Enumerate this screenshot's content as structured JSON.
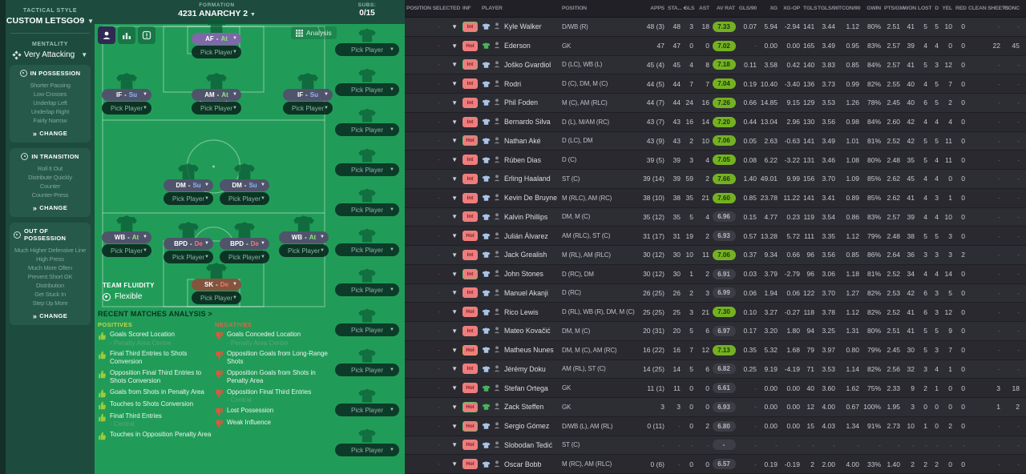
{
  "colors": {
    "pitch_green": "#219c58",
    "sidebar_green": "#1d4c3e",
    "card_green": "#27594b",
    "role_slate": "#50546b",
    "role_purple": "#7e68a8",
    "role_gk_brown": "#84543f",
    "duty_attack": "#8ce87f",
    "duty_support": "#8fb5f2",
    "duty_defend": "#f4766e",
    "rating_good": "#74b122",
    "badge_red": "#ee7d7d",
    "positive_icon": "#9ccc3d",
    "negative_icon": "#e2553d",
    "table_bg": "#27272d"
  },
  "sidebar": {
    "tactical_style_label": "TACTICAL STYLE",
    "tactical_style_value": "CUSTOM LETSGO9",
    "mentality_label": "MENTALITY",
    "mentality_value": "Very Attacking",
    "sections": [
      {
        "title": "IN POSSESSION",
        "items": [
          "Shorter Passing",
          "Low Crosses",
          "Underlap Left",
          "Underlap Right",
          "Fairly Narrow"
        ],
        "change_label": "CHANGE"
      },
      {
        "title": "IN TRANSITION",
        "items": [
          "Roll It Out",
          "Distribute Quickly",
          "Counter",
          "Counter-Press"
        ],
        "change_label": "CHANGE"
      },
      {
        "title": "OUT OF POSSESSION",
        "items": [
          "Much Higher Defensive Line",
          "High Press",
          "Much More Often",
          "Prevent Short GK Distribution",
          "Get Stuck In",
          "Step Up More"
        ],
        "change_label": "CHANGE"
      }
    ]
  },
  "formation": {
    "label": "FORMATION",
    "name": "4231 ANARCHY 2",
    "analysis_button": "Analysis",
    "pick_label": "Pick Player",
    "team_fluidity_label": "TEAM FLUIDITY",
    "team_fluidity_value": "Flexible",
    "positions": [
      {
        "role": "AF",
        "duty": "At"
      },
      {
        "role": "IF",
        "duty": "Su"
      },
      {
        "role": "AM",
        "duty": "At"
      },
      {
        "role": "IF",
        "duty": "Su"
      },
      {
        "role": "DM",
        "duty": "Su"
      },
      {
        "role": "DM",
        "duty": "Su"
      },
      {
        "role": "WB",
        "duty": "At"
      },
      {
        "role": "BPD",
        "duty": "De"
      },
      {
        "role": "BPD",
        "duty": "De"
      },
      {
        "role": "WB",
        "duty": "At"
      },
      {
        "role": "SK",
        "duty": "De"
      }
    ]
  },
  "subs": {
    "label": "SUBS:",
    "count": "0/15",
    "slots": 11
  },
  "analysis": {
    "title": "RECENT MATCHES ANALYSIS >",
    "positives_title": "POSITIVES",
    "negatives_title": "NEGATIVES",
    "positives": [
      {
        "text": "Goals Scored Location",
        "note": "- Penalty Area Centre"
      },
      {
        "text": "Final Third Entries to Shots Conversion"
      },
      {
        "text": "Opposition Final Third Entries to Shots Conversion"
      },
      {
        "text": "Goals from Shots in Penalty Area"
      },
      {
        "text": "Touches to Shots Conversion"
      },
      {
        "text": "Final Third Entries",
        "note": "- Central"
      },
      {
        "text": "Touches in Opposition Penalty Area"
      }
    ],
    "negatives": [
      {
        "text": "Goals Conceded Location",
        "note": "- Penalty Area Centre"
      },
      {
        "text": "Opposition Goals from Long-Range Shots"
      },
      {
        "text": "Opposition Goals from Shots in Penalty Area"
      },
      {
        "text": "Opposition Final Third Entries",
        "note": "- Central"
      },
      {
        "text": "Lost Possession"
      },
      {
        "text": "Weak Influence"
      }
    ]
  },
  "table": {
    "selected_placeholder": "-",
    "headers": {
      "possel": "POSITION SELECTED",
      "inf": "INF",
      "player": "PLAYER",
      "pos": "POSITION",
      "apps": "APPS",
      "sta": "STA...",
      "gls": "GLS",
      "ast": "AST",
      "rat": "AV RAT",
      "gls90": "GLS/90",
      "xg": "XG",
      "xgop": "XG-OP",
      "tgls": "TGLS",
      "tgls90": "TGLS/90",
      "tcon90": "TCON/90",
      "gwin": "GWIN",
      "ptsgm": "PTS/GM",
      "won": "WON",
      "lost": "LOST",
      "d": "D",
      "yel": "YEL",
      "red": "RED",
      "cs": "CLEAN SHEETS",
      "conc": "CONC"
    },
    "rows": [
      {
        "inf": "Int",
        "accent": "green",
        "gk": false,
        "name": "Kyle Walker",
        "pos": "D/WB (R)",
        "apps": "48 (3)",
        "sta": "48",
        "gls": "3",
        "ast": "18",
        "rat": "7.33",
        "rat_good": true,
        "gls90": "0.07",
        "xg": "5.94",
        "xgop": "-2.94",
        "tgls": "141",
        "tgls90": "3.44",
        "tcon90": "1.12",
        "gwin": "80%",
        "ptsgm": "2.51",
        "won": "41",
        "lost": "5",
        "d": "5",
        "yel": "10",
        "red": "0",
        "cs": "-",
        "conc": "-"
      },
      {
        "inf": "Hol",
        "accent": null,
        "gk": true,
        "name": "Ederson",
        "pos": "GK",
        "apps": "47",
        "sta": "47",
        "gls": "0",
        "ast": "0",
        "rat": "7.02",
        "rat_good": true,
        "gls90": "-",
        "xg": "0.00",
        "xgop": "0.00",
        "tgls": "165",
        "tgls90": "3.49",
        "tcon90": "0.95",
        "gwin": "83%",
        "ptsgm": "2.57",
        "won": "39",
        "lost": "4",
        "d": "4",
        "yel": "0",
        "red": "0",
        "cs": "22",
        "conc": "45"
      },
      {
        "inf": "Int",
        "accent": "green",
        "gk": false,
        "name": "Joško Gvardiol",
        "pos": "D (LC), WB (L)",
        "apps": "45 (4)",
        "sta": "45",
        "gls": "4",
        "ast": "8",
        "rat": "7.18",
        "rat_good": true,
        "gls90": "0.11",
        "xg": "3.58",
        "xgop": "0.42",
        "tgls": "140",
        "tgls90": "3.83",
        "tcon90": "0.85",
        "gwin": "84%",
        "ptsgm": "2.57",
        "won": "41",
        "lost": "5",
        "d": "3",
        "yel": "12",
        "red": "0",
        "cs": "-",
        "conc": "-"
      },
      {
        "inf": "Int",
        "accent": null,
        "gk": false,
        "name": "Rodri",
        "pos": "D (C), DM, M (C)",
        "apps": "44 (5)",
        "sta": "44",
        "gls": "7",
        "ast": "7",
        "rat": "7.04",
        "rat_good": true,
        "gls90": "0.19",
        "xg": "10.40",
        "xgop": "-3.40",
        "tgls": "136",
        "tgls90": "3.73",
        "tcon90": "0.99",
        "gwin": "82%",
        "ptsgm": "2.55",
        "won": "40",
        "lost": "4",
        "d": "5",
        "yel": "7",
        "red": "0",
        "cs": "-",
        "conc": "-"
      },
      {
        "inf": "Int",
        "accent": null,
        "gk": false,
        "name": "Phil Foden",
        "pos": "M (C), AM (RLC)",
        "apps": "44 (7)",
        "sta": "44",
        "gls": "24",
        "ast": "16",
        "rat": "7.26",
        "rat_good": true,
        "gls90": "0.66",
        "xg": "14.85",
        "xgop": "9.15",
        "tgls": "129",
        "tgls90": "3.53",
        "tcon90": "1.26",
        "gwin": "78%",
        "ptsgm": "2.45",
        "won": "40",
        "lost": "6",
        "d": "5",
        "yel": "2",
        "red": "0",
        "cs": "-",
        "conc": "-"
      },
      {
        "inf": "Int",
        "accent": null,
        "gk": false,
        "name": "Bernardo Silva",
        "pos": "D (L), M/AM (RC)",
        "apps": "43 (7)",
        "sta": "43",
        "gls": "16",
        "ast": "14",
        "rat": "7.20",
        "rat_good": true,
        "gls90": "0.44",
        "xg": "13.04",
        "xgop": "2.96",
        "tgls": "130",
        "tgls90": "3.56",
        "tcon90": "0.98",
        "gwin": "84%",
        "ptsgm": "2.60",
        "won": "42",
        "lost": "4",
        "d": "4",
        "yel": "4",
        "red": "0",
        "cs": "-",
        "conc": "-"
      },
      {
        "inf": "Hol",
        "accent": "green",
        "gk": false,
        "name": "Nathan Aké",
        "pos": "D (LC), DM",
        "apps": "43 (9)",
        "sta": "43",
        "gls": "2",
        "ast": "10",
        "rat": "7.06",
        "rat_good": true,
        "gls90": "0.05",
        "xg": "2.63",
        "xgop": "-0.63",
        "tgls": "141",
        "tgls90": "3.49",
        "tcon90": "1.01",
        "gwin": "81%",
        "ptsgm": "2.52",
        "won": "42",
        "lost": "5",
        "d": "5",
        "yel": "11",
        "red": "0",
        "cs": "-",
        "conc": "-"
      },
      {
        "inf": "Int",
        "accent": null,
        "gk": false,
        "name": "Rúben Dias",
        "pos": "D (C)",
        "apps": "39 (5)",
        "sta": "39",
        "gls": "3",
        "ast": "4",
        "rat": "7.05",
        "rat_good": true,
        "gls90": "0.08",
        "xg": "6.22",
        "xgop": "-3.22",
        "tgls": "131",
        "tgls90": "3.46",
        "tcon90": "1.08",
        "gwin": "80%",
        "ptsgm": "2.48",
        "won": "35",
        "lost": "5",
        "d": "4",
        "yel": "11",
        "red": "0",
        "cs": "-",
        "conc": "-"
      },
      {
        "inf": "Int",
        "accent": null,
        "gk": false,
        "name": "Erling Haaland",
        "pos": "ST (C)",
        "apps": "39 (14)",
        "sta": "39",
        "gls": "59",
        "ast": "2",
        "rat": "7.66",
        "rat_good": true,
        "gls90": "1.40",
        "xg": "49.01",
        "xgop": "9.99",
        "tgls": "156",
        "tgls90": "3.70",
        "tcon90": "1.09",
        "gwin": "85%",
        "ptsgm": "2.62",
        "won": "45",
        "lost": "4",
        "d": "4",
        "yel": "0",
        "red": "0",
        "cs": "-",
        "conc": "-"
      },
      {
        "inf": "Int",
        "accent": null,
        "gk": false,
        "name": "Kevin De Bruyne",
        "pos": "M (RLC), AM (RC)",
        "apps": "38 (10)",
        "sta": "38",
        "gls": "35",
        "ast": "21",
        "rat": "7.60",
        "rat_good": true,
        "gls90": "0.85",
        "xg": "23.78",
        "xgop": "11.22",
        "tgls": "141",
        "tgls90": "3.41",
        "tcon90": "0.89",
        "gwin": "85%",
        "ptsgm": "2.62",
        "won": "41",
        "lost": "4",
        "d": "3",
        "yel": "1",
        "red": "0",
        "cs": "-",
        "conc": "-"
      },
      {
        "inf": "Int",
        "accent": null,
        "gk": false,
        "name": "Kalvin Phillips",
        "pos": "DM, M (C)",
        "apps": "35 (12)",
        "sta": "35",
        "gls": "5",
        "ast": "4",
        "rat": "6.96",
        "rat_good": false,
        "gls90": "0.15",
        "xg": "4.77",
        "xgop": "0.23",
        "tgls": "119",
        "tgls90": "3.54",
        "tcon90": "0.86",
        "gwin": "83%",
        "ptsgm": "2.57",
        "won": "39",
        "lost": "4",
        "d": "4",
        "yel": "10",
        "red": "0",
        "cs": "-",
        "conc": "-"
      },
      {
        "inf": "Hol",
        "accent": null,
        "gk": false,
        "name": "Julián Álvarez",
        "pos": "AM (RLC), ST (C)",
        "apps": "31 (17)",
        "sta": "31",
        "gls": "19",
        "ast": "2",
        "rat": "6.93",
        "rat_good": false,
        "gls90": "0.57",
        "xg": "13.28",
        "xgop": "5.72",
        "tgls": "111",
        "tgls90": "3.35",
        "tcon90": "1.12",
        "gwin": "79%",
        "ptsgm": "2.48",
        "won": "38",
        "lost": "5",
        "d": "5",
        "yel": "3",
        "red": "0",
        "cs": "-",
        "conc": "-"
      },
      {
        "inf": "Int",
        "accent": null,
        "gk": false,
        "name": "Jack Grealish",
        "pos": "M (RL), AM (RLC)",
        "apps": "30 (12)",
        "sta": "30",
        "gls": "10",
        "ast": "11",
        "rat": "7.06",
        "rat_good": true,
        "gls90": "0.37",
        "xg": "9.34",
        "xgop": "0.66",
        "tgls": "96",
        "tgls90": "3.56",
        "tcon90": "0.85",
        "gwin": "86%",
        "ptsgm": "2.64",
        "won": "36",
        "lost": "3",
        "d": "3",
        "yel": "3",
        "red": "2",
        "cs": "-",
        "conc": "-"
      },
      {
        "inf": "Int",
        "accent": "green",
        "gk": false,
        "name": "John Stones",
        "pos": "D (RC), DM",
        "apps": "30 (12)",
        "sta": "30",
        "gls": "1",
        "ast": "2",
        "rat": "6.91",
        "rat_good": false,
        "gls90": "0.03",
        "xg": "3.79",
        "xgop": "-2.79",
        "tgls": "96",
        "tgls90": "3.06",
        "tcon90": "1.18",
        "gwin": "81%",
        "ptsgm": "2.52",
        "won": "34",
        "lost": "4",
        "d": "4",
        "yel": "14",
        "red": "0",
        "cs": "-",
        "conc": "-"
      },
      {
        "inf": "Int",
        "accent": null,
        "gk": false,
        "name": "Manuel Akanji",
        "pos": "D (RC)",
        "apps": "26 (25)",
        "sta": "26",
        "gls": "2",
        "ast": "3",
        "rat": "6.99",
        "rat_good": false,
        "gls90": "0.06",
        "xg": "1.94",
        "xgop": "0.06",
        "tgls": "122",
        "tgls90": "3.70",
        "tcon90": "1.27",
        "gwin": "82%",
        "ptsgm": "2.53",
        "won": "42",
        "lost": "6",
        "d": "3",
        "yel": "5",
        "red": "0",
        "cs": "-",
        "conc": "-"
      },
      {
        "inf": "Hol",
        "accent": null,
        "gk": false,
        "name": "Rico Lewis",
        "pos": "D (RL), WB (R), DM, M (C)",
        "apps": "25 (25)",
        "sta": "25",
        "gls": "3",
        "ast": "21",
        "rat": "7.30",
        "rat_good": true,
        "gls90": "0.10",
        "xg": "3.27",
        "xgop": "-0.27",
        "tgls": "118",
        "tgls90": "3.78",
        "tcon90": "1.12",
        "gwin": "82%",
        "ptsgm": "2.52",
        "won": "41",
        "lost": "6",
        "d": "3",
        "yel": "12",
        "red": "0",
        "cs": "-",
        "conc": "-"
      },
      {
        "inf": "Int",
        "accent": null,
        "gk": false,
        "name": "Mateo Kovačić",
        "pos": "DM, M (C)",
        "apps": "20 (31)",
        "sta": "20",
        "gls": "5",
        "ast": "6",
        "rat": "6.97",
        "rat_good": false,
        "gls90": "0.17",
        "xg": "3.20",
        "xgop": "1.80",
        "tgls": "94",
        "tgls90": "3.25",
        "tcon90": "1.31",
        "gwin": "80%",
        "ptsgm": "2.51",
        "won": "41",
        "lost": "5",
        "d": "5",
        "yel": "9",
        "red": "0",
        "cs": "-",
        "conc": "-"
      },
      {
        "inf": "Hol",
        "accent": "orange",
        "gk": false,
        "name": "Matheus Nunes",
        "pos": "DM, M (C), AM (RC)",
        "apps": "16 (22)",
        "sta": "16",
        "gls": "7",
        "ast": "12",
        "rat": "7.13",
        "rat_good": true,
        "gls90": "0.35",
        "xg": "5.32",
        "xgop": "1.68",
        "tgls": "79",
        "tgls90": "3.97",
        "tcon90": "0.80",
        "gwin": "79%",
        "ptsgm": "2.45",
        "won": "30",
        "lost": "5",
        "d": "3",
        "yel": "7",
        "red": "0",
        "cs": "-",
        "conc": "-"
      },
      {
        "inf": "Int",
        "accent": null,
        "gk": false,
        "name": "Jérémy Doku",
        "pos": "AM (RL), ST (C)",
        "apps": "14 (25)",
        "sta": "14",
        "gls": "5",
        "ast": "6",
        "rat": "6.82",
        "rat_good": false,
        "gls90": "0.25",
        "xg": "9.19",
        "xgop": "-4.19",
        "tgls": "71",
        "tgls90": "3.53",
        "tcon90": "1.14",
        "gwin": "82%",
        "ptsgm": "2.56",
        "won": "32",
        "lost": "3",
        "d": "4",
        "yel": "1",
        "red": "0",
        "cs": "-",
        "conc": "-"
      },
      {
        "inf": "Hol",
        "accent": null,
        "gk": true,
        "name": "Stefan Ortega",
        "pos": "GK",
        "apps": "11 (1)",
        "sta": "11",
        "gls": "0",
        "ast": "0",
        "rat": "6.61",
        "rat_good": false,
        "gls90": "-",
        "xg": "0.00",
        "xgop": "0.00",
        "tgls": "40",
        "tgls90": "3.60",
        "tcon90": "1.62",
        "gwin": "75%",
        "ptsgm": "2.33",
        "won": "9",
        "lost": "2",
        "d": "1",
        "yel": "0",
        "red": "0",
        "cs": "3",
        "conc": "18"
      },
      {
        "inf": "Hol",
        "accent": "green",
        "gk": true,
        "name": "Zack Steffen",
        "pos": "GK",
        "apps": "3",
        "sta": "3",
        "gls": "0",
        "ast": "0",
        "rat": "6.93",
        "rat_good": false,
        "gls90": "-",
        "xg": "0.00",
        "xgop": "0.00",
        "tgls": "12",
        "tgls90": "4.00",
        "tcon90": "0.67",
        "gwin": "100%",
        "ptsgm": "1.95",
        "won": "3",
        "lost": "0",
        "d": "0",
        "yel": "0",
        "red": "0",
        "cs": "1",
        "conc": "2"
      },
      {
        "inf": "Hol",
        "accent": "green",
        "gk": false,
        "name": "Sergio Gómez",
        "pos": "D/WB (L), AM (RL)",
        "apps": "0 (11)",
        "sta": "-",
        "gls": "0",
        "ast": "2",
        "rat": "6.80",
        "rat_good": false,
        "gls90": "-",
        "xg": "0.00",
        "xgop": "0.00",
        "tgls": "15",
        "tgls90": "4.03",
        "tcon90": "1.34",
        "gwin": "91%",
        "ptsgm": "2.73",
        "won": "10",
        "lost": "1",
        "d": "0",
        "yel": "2",
        "red": "0",
        "cs": "-",
        "conc": "-"
      },
      {
        "inf": "Hol",
        "accent": null,
        "gk": false,
        "name": "Slobodan Tedić",
        "pos": "ST (C)",
        "apps": "-",
        "sta": "-",
        "gls": "-",
        "ast": "-",
        "rat": "-",
        "rat_good": false,
        "gls90": "-",
        "xg": "-",
        "xgop": "-",
        "tgls": "-",
        "tgls90": "-",
        "tcon90": "-",
        "gwin": "-",
        "ptsgm": "-",
        "won": "-",
        "lost": "-",
        "d": "-",
        "yel": "-",
        "red": "-",
        "cs": "-",
        "conc": "-"
      },
      {
        "inf": "Hol",
        "accent": null,
        "gk": false,
        "name": "Oscar Bobb",
        "pos": "M (RC), AM (RLC)",
        "apps": "0 (6)",
        "sta": "-",
        "gls": "0",
        "ast": "0",
        "rat": "6.57",
        "rat_good": false,
        "gls90": "-",
        "xg": "0.19",
        "xgop": "-0.19",
        "tgls": "2",
        "tgls90": "2.00",
        "tcon90": "4.00",
        "gwin": "33%",
        "ptsgm": "1.40",
        "won": "2",
        "lost": "2",
        "d": "2",
        "yel": "0",
        "red": "0",
        "cs": "-",
        "conc": "-"
      }
    ]
  }
}
